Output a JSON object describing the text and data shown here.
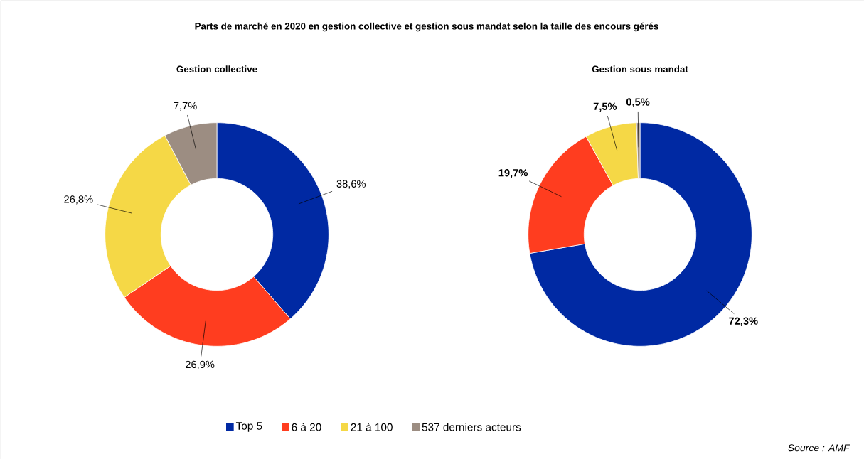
{
  "chart_data": [
    {
      "type": "donut",
      "title": "Parts de marché en 2020 en gestion collective et gestion sous mandat selon la taille des encours gérés",
      "subtitle": "Gestion collective",
      "categories": [
        "Top 5",
        "6 à 20",
        "21 à 100",
        "537 derniers acteurs"
      ],
      "values": [
        38.6,
        26.9,
        26.8,
        7.7
      ],
      "colors": [
        "#0029a3",
        "#ff3d1f",
        "#f5d846",
        "#9c8d82"
      ],
      "value_labels": [
        "38,6%",
        "26,9%",
        "26,8%",
        "7,7%"
      ],
      "legend": "bottom"
    },
    {
      "type": "donut",
      "title": "Gestion sous mandat",
      "categories": [
        null,
        null,
        null,
        null
      ],
      "values": [
        72.3,
        19.7,
        7.5,
        0.5
      ],
      "colors": [
        "#0029a3",
        "#ff3d1f",
        "#f5d846",
        "#9c8d82"
      ],
      "value_labels": [
        "**72,3%**",
        "**19,7%**",
        "**7,5%**",
        "**0,5%**"
      ],
      "annotations": [
        "*Source : AMF*"
      ]
    }
  ]
}
